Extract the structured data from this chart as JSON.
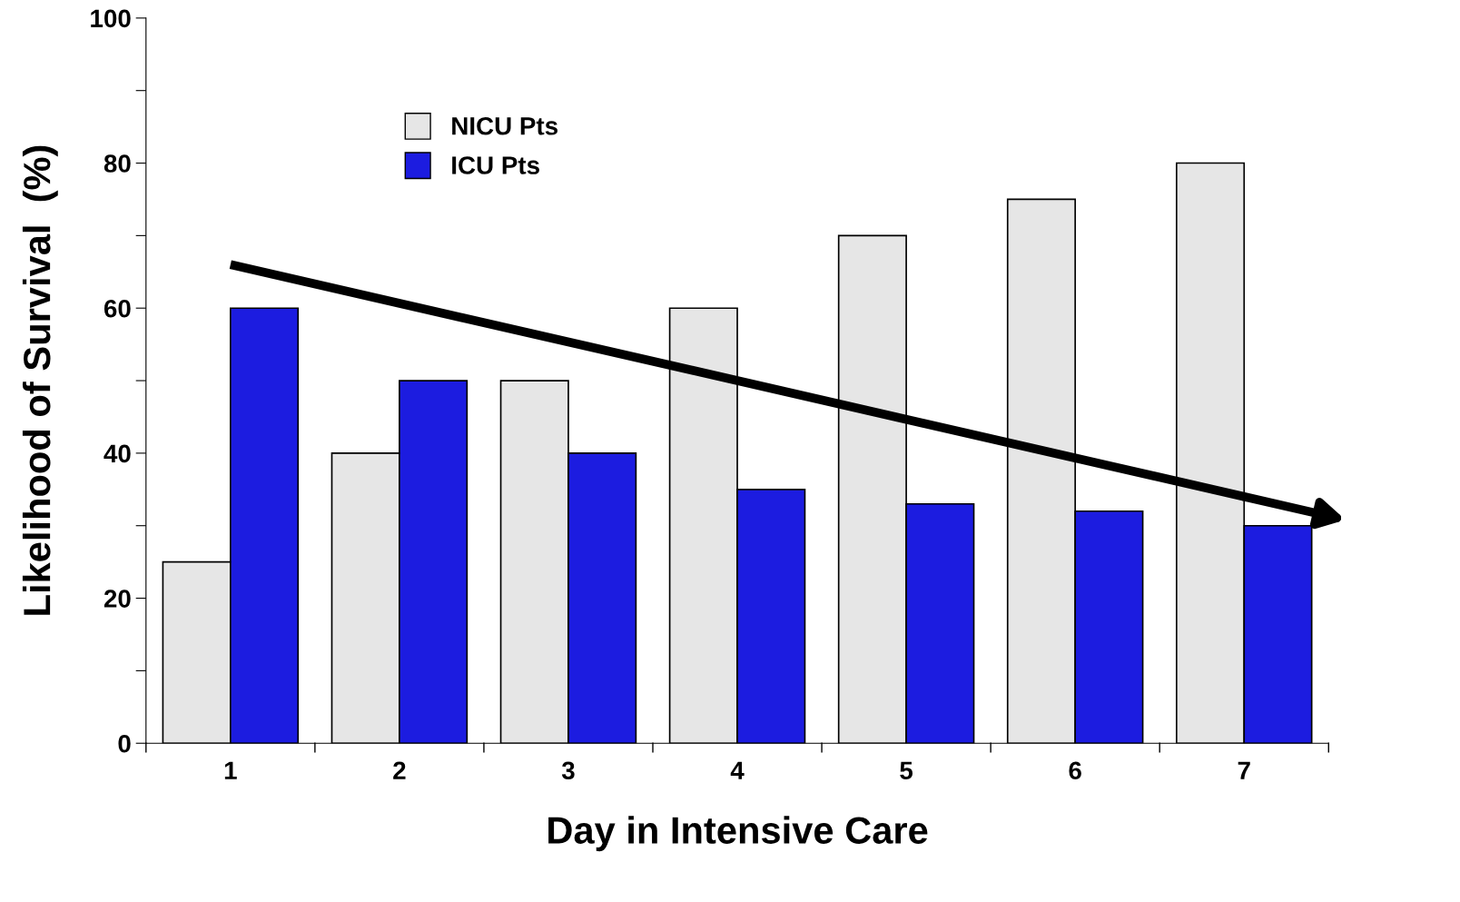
{
  "chart_data": {
    "type": "bar",
    "xlabel": "Day in Intensive Care",
    "ylabel": "Likelihood of Survival  (%)",
    "categories": [
      "1",
      "2",
      "3",
      "4",
      "5",
      "6",
      "7"
    ],
    "series": [
      {
        "name": "NICU Pts",
        "color": "#e6e6e6",
        "values": [
          25,
          40,
          50,
          60,
          70,
          75,
          80
        ]
      },
      {
        "name": "ICU Pts",
        "color": "#1c1ce0",
        "values": [
          60,
          50,
          40,
          35,
          33,
          32,
          30
        ]
      },
      {
        "type": "line",
        "color": "#000000",
        "x": [
          "1",
          "7"
        ],
        "values": [
          66,
          34
        ]
      }
    ],
    "ylim": [
      0,
      100
    ],
    "yticks": [
      0,
      {
        "value": 10,
        "label": null
      },
      20,
      {
        "value": 30,
        "label": null
      },
      40,
      {
        "value": 50,
        "label": null
      },
      60,
      {
        "value": 70,
        "label": null
      },
      80,
      {
        "value": 90,
        "label": null
      },
      100
    ],
    "legend": "top left",
    "grid": false
  }
}
